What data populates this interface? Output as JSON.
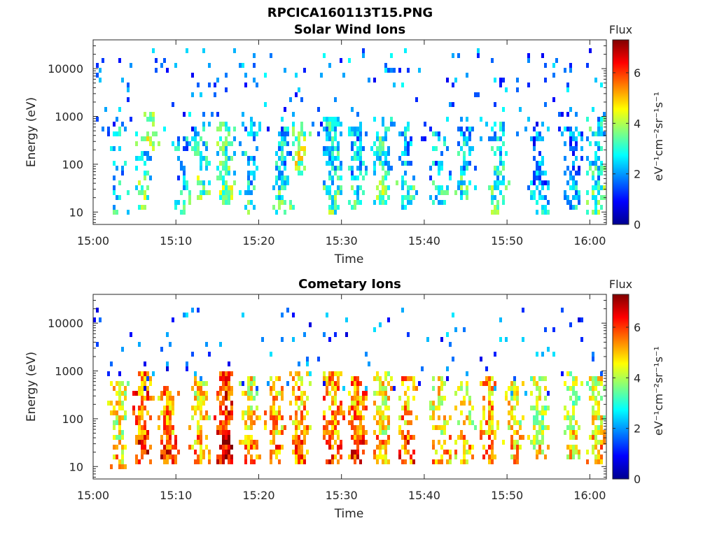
{
  "figure_title": "RPCICA160113T15.PNG",
  "colormap": [
    "#00008f",
    "#0000ff",
    "#0080ff",
    "#00ffff",
    "#80ff80",
    "#ffff00",
    "#ff8000",
    "#ff0000",
    "#800000"
  ],
  "chart_data": [
    {
      "type": "heatmap",
      "title": "Solar Wind Ions",
      "xlabel": "Time",
      "ylabel": "Energy (eV)",
      "x_range": [
        "15:00",
        "16:02"
      ],
      "x_ticks": [
        "15:00",
        "15:10",
        "15:20",
        "15:30",
        "15:40",
        "15:50",
        "16:00"
      ],
      "y_scale": "log",
      "y_range": [
        5.5,
        40000
      ],
      "y_ticks": [
        10,
        100,
        1000,
        10000
      ],
      "y_tick_labels": [
        "10",
        "100",
        "1000",
        "10000"
      ],
      "colorbar": {
        "label": "Flux",
        "unit": "eV⁻¹cm⁻²sr⁻¹s⁻¹",
        "range": [
          0,
          7.3
        ],
        "ticks": [
          0,
          2,
          4,
          6
        ]
      },
      "seed": 11,
      "bursts": [
        {
          "t": "15:03",
          "e_lo": 8,
          "e_hi": 600,
          "level": 2.6,
          "density": 0.25
        },
        {
          "t": "15:06",
          "e_lo": 12,
          "e_hi": 500,
          "level": 3.0,
          "density": 0.35
        },
        {
          "t": "15:07",
          "e_lo": 200,
          "e_hi": 1500,
          "level": 3.6,
          "density": 0.4
        },
        {
          "t": "15:11",
          "e_lo": 10,
          "e_hi": 400,
          "level": 2.4,
          "density": 0.3
        },
        {
          "t": "15:13",
          "e_lo": 20,
          "e_hi": 800,
          "level": 3.0,
          "density": 0.4
        },
        {
          "t": "15:16",
          "e_lo": 15,
          "e_hi": 900,
          "level": 3.3,
          "density": 0.5
        },
        {
          "t": "15:19",
          "e_lo": 10,
          "e_hi": 800,
          "level": 2.6,
          "density": 0.4
        },
        {
          "t": "15:23",
          "e_lo": 10,
          "e_hi": 700,
          "level": 2.6,
          "density": 0.45
        },
        {
          "t": "15:25",
          "e_lo": 60,
          "e_hi": 900,
          "level": 3.6,
          "density": 0.45
        },
        {
          "t": "15:29",
          "e_lo": 10,
          "e_hi": 1200,
          "level": 2.8,
          "density": 0.55
        },
        {
          "t": "15:32",
          "e_lo": 12,
          "e_hi": 600,
          "level": 2.5,
          "density": 0.4
        },
        {
          "t": "15:35",
          "e_lo": 15,
          "e_hi": 1000,
          "level": 3.0,
          "density": 0.55
        },
        {
          "t": "15:38",
          "e_lo": 12,
          "e_hi": 800,
          "level": 2.5,
          "density": 0.4
        },
        {
          "t": "15:42",
          "e_lo": 12,
          "e_hi": 500,
          "level": 2.4,
          "density": 0.35
        },
        {
          "t": "15:45",
          "e_lo": 20,
          "e_hi": 700,
          "level": 2.6,
          "density": 0.35
        },
        {
          "t": "15:49",
          "e_lo": 10,
          "e_hi": 900,
          "level": 2.8,
          "density": 0.45
        },
        {
          "t": "15:54",
          "e_lo": 10,
          "e_hi": 800,
          "level": 2.0,
          "density": 0.45
        },
        {
          "t": "15:58",
          "e_lo": 12,
          "e_hi": 700,
          "level": 2.0,
          "density": 0.45
        },
        {
          "t": "16:01",
          "e_lo": 10,
          "e_hi": 1000,
          "level": 2.8,
          "density": 0.5
        }
      ],
      "background": {
        "e_lo": 300,
        "e_hi": 30000,
        "level": 1.8,
        "density": 0.05
      }
    },
    {
      "type": "heatmap",
      "title": "Cometary Ions",
      "xlabel": "Time",
      "ylabel": "Energy (eV)",
      "x_range": [
        "15:00",
        "16:02"
      ],
      "x_ticks": [
        "15:00",
        "15:10",
        "15:20",
        "15:30",
        "15:40",
        "15:50",
        "16:00"
      ],
      "y_scale": "log",
      "y_range": [
        5.5,
        40000
      ],
      "y_ticks": [
        10,
        100,
        1000,
        10000
      ],
      "y_tick_labels": [
        "10",
        "100",
        "1000",
        "10000"
      ],
      "colorbar": {
        "label": "Flux",
        "unit": "eV⁻¹cm⁻²sr⁻¹s⁻¹",
        "range": [
          0,
          7.3
        ],
        "ticks": [
          0,
          2,
          4,
          6
        ]
      },
      "seed": 29,
      "bursts": [
        {
          "t": "15:03",
          "e_lo": 10,
          "e_hi": 600,
          "level": 4.6,
          "density": 0.5
        },
        {
          "t": "15:06",
          "e_lo": 12,
          "e_hi": 1000,
          "level": 5.8,
          "density": 0.55
        },
        {
          "t": "15:09",
          "e_lo": 12,
          "e_hi": 500,
          "level": 5.6,
          "density": 0.55
        },
        {
          "t": "15:13",
          "e_lo": 12,
          "e_hi": 800,
          "level": 4.8,
          "density": 0.5
        },
        {
          "t": "15:16",
          "e_lo": 12,
          "e_hi": 1200,
          "level": 6.2,
          "density": 0.6
        },
        {
          "t": "15:19",
          "e_lo": 12,
          "e_hi": 900,
          "level": 4.8,
          "density": 0.5
        },
        {
          "t": "15:22",
          "e_lo": 12,
          "e_hi": 800,
          "level": 5.2,
          "density": 0.5
        },
        {
          "t": "15:25",
          "e_lo": 12,
          "e_hi": 1000,
          "level": 5.2,
          "density": 0.5
        },
        {
          "t": "15:29",
          "e_lo": 12,
          "e_hi": 1200,
          "level": 5.5,
          "density": 0.55
        },
        {
          "t": "15:32",
          "e_lo": 12,
          "e_hi": 900,
          "level": 5.5,
          "density": 0.55
        },
        {
          "t": "15:35",
          "e_lo": 12,
          "e_hi": 1000,
          "level": 4.8,
          "density": 0.5
        },
        {
          "t": "15:38",
          "e_lo": 12,
          "e_hi": 800,
          "level": 5.4,
          "density": 0.5
        },
        {
          "t": "15:42",
          "e_lo": 12,
          "e_hi": 800,
          "level": 4.6,
          "density": 0.45
        },
        {
          "t": "15:45",
          "e_lo": 12,
          "e_hi": 700,
          "level": 4.6,
          "density": 0.4
        },
        {
          "t": "15:48",
          "e_lo": 12,
          "e_hi": 900,
          "level": 5.3,
          "density": 0.5
        },
        {
          "t": "15:51",
          "e_lo": 12,
          "e_hi": 700,
          "level": 4.6,
          "density": 0.45
        },
        {
          "t": "15:54",
          "e_lo": 15,
          "e_hi": 900,
          "level": 4.2,
          "density": 0.5
        },
        {
          "t": "15:58",
          "e_lo": 15,
          "e_hi": 1000,
          "level": 4.2,
          "density": 0.5
        },
        {
          "t": "16:01",
          "e_lo": 12,
          "e_hi": 900,
          "level": 4.6,
          "density": 0.5
        }
      ],
      "background": {
        "e_lo": 300,
        "e_hi": 25000,
        "level": 1.6,
        "density": 0.04
      }
    }
  ]
}
